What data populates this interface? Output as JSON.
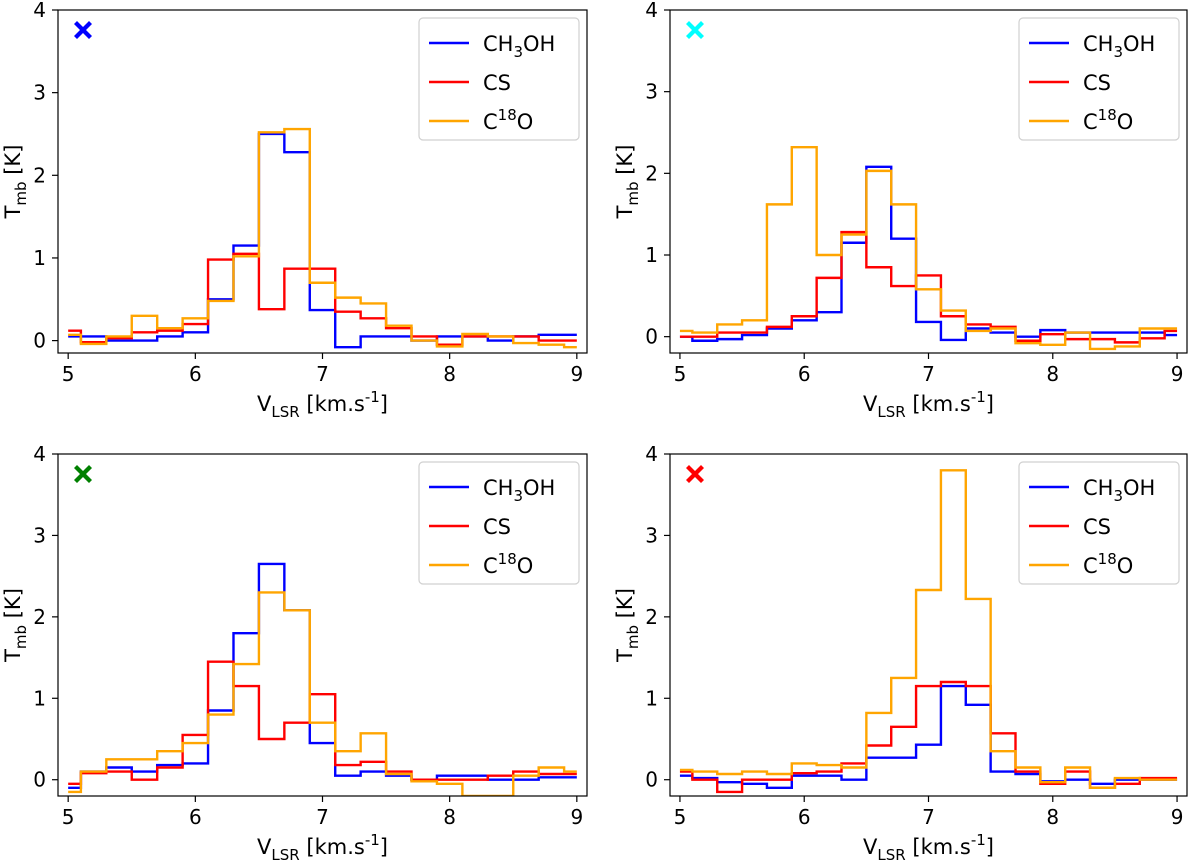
{
  "chart_data": [
    {
      "type": "line",
      "drawstyle": "steps-mid",
      "marker": {
        "symbol": "X",
        "color": "#0000ff"
      },
      "xlabel": "V_LSR [km.s^-1]",
      "ylabel": "T_mb [K]",
      "xlim": [
        4.92,
        9.08
      ],
      "ylim": [
        -0.15,
        4.0
      ],
      "xticks": [
        5,
        6,
        7,
        8,
        9
      ],
      "yticks": [
        0,
        1,
        2,
        3,
        4
      ],
      "legend": "top-right",
      "x": [
        5.0,
        5.2,
        5.4,
        5.6,
        5.8,
        6.0,
        6.2,
        6.4,
        6.6,
        6.8,
        7.0,
        7.2,
        7.4,
        7.6,
        7.8,
        8.0,
        8.2,
        8.4,
        8.6,
        8.8,
        9.0
      ],
      "series": [
        {
          "name": "CH3OH",
          "color": "#0000ff",
          "values": [
            0.05,
            0.05,
            0.0,
            0.0,
            0.05,
            0.1,
            0.5,
            1.15,
            2.5,
            2.28,
            0.37,
            -0.08,
            0.05,
            0.05,
            0.0,
            0.05,
            0.05,
            0.0,
            0.05,
            0.07,
            0.07
          ]
        },
        {
          "name": "CS",
          "color": "#ff0000",
          "values": [
            0.12,
            -0.02,
            0.03,
            0.1,
            0.12,
            0.2,
            0.98,
            1.05,
            0.38,
            0.87,
            0.87,
            0.35,
            0.27,
            0.15,
            0.05,
            -0.05,
            0.05,
            0.05,
            0.05,
            0.0,
            0.0
          ]
        },
        {
          "name": "C18O",
          "color": "#ffa500",
          "values": [
            0.07,
            -0.04,
            0.05,
            0.3,
            0.15,
            0.27,
            0.48,
            1.02,
            2.52,
            2.56,
            0.7,
            0.52,
            0.45,
            0.18,
            0.0,
            -0.07,
            0.08,
            0.05,
            -0.03,
            -0.05,
            -0.08
          ]
        }
      ]
    },
    {
      "type": "line",
      "drawstyle": "steps-mid",
      "marker": {
        "symbol": "X",
        "color": "#00ffff"
      },
      "xlabel": "V_LSR [km.s^-1]",
      "ylabel": "T_mb [K]",
      "xlim": [
        4.92,
        9.08
      ],
      "ylim": [
        -0.2,
        4.0
      ],
      "xticks": [
        5,
        6,
        7,
        8,
        9
      ],
      "yticks": [
        0,
        1,
        2,
        3,
        4
      ],
      "legend": "top-right",
      "x": [
        5.0,
        5.2,
        5.4,
        5.6,
        5.8,
        6.0,
        6.2,
        6.4,
        6.6,
        6.8,
        7.0,
        7.2,
        7.4,
        7.6,
        7.8,
        8.0,
        8.2,
        8.4,
        8.6,
        8.8,
        9.0
      ],
      "series": [
        {
          "name": "CH3OH",
          "color": "#0000ff",
          "values": [
            0.0,
            -0.05,
            -0.03,
            0.02,
            0.1,
            0.2,
            0.3,
            1.15,
            2.08,
            1.2,
            0.18,
            -0.04,
            0.1,
            0.05,
            0.0,
            0.08,
            0.05,
            0.05,
            0.05,
            0.05,
            0.02
          ]
        },
        {
          "name": "CS",
          "color": "#ff0000",
          "values": [
            0.0,
            0.0,
            0.05,
            0.05,
            0.12,
            0.25,
            0.72,
            1.28,
            0.85,
            0.62,
            0.75,
            0.25,
            0.15,
            0.12,
            -0.05,
            0.03,
            -0.03,
            -0.03,
            -0.07,
            -0.02,
            0.07
          ]
        },
        {
          "name": "C18O",
          "color": "#ffa500",
          "values": [
            0.07,
            0.05,
            0.15,
            0.2,
            1.62,
            2.32,
            1.0,
            1.25,
            2.03,
            1.62,
            0.58,
            0.32,
            0.07,
            0.1,
            -0.08,
            -0.1,
            0.05,
            -0.15,
            -0.12,
            0.1,
            0.1
          ]
        }
      ]
    },
    {
      "type": "line",
      "drawstyle": "steps-mid",
      "marker": {
        "symbol": "X",
        "color": "#008000"
      },
      "xlabel": "V_LSR [km.s^-1]",
      "ylabel": "T_mb [K]",
      "xlim": [
        4.92,
        9.08
      ],
      "ylim": [
        -0.2,
        4.0
      ],
      "xticks": [
        5,
        6,
        7,
        8,
        9
      ],
      "yticks": [
        0,
        1,
        2,
        3,
        4
      ],
      "legend": "top-right",
      "x": [
        5.0,
        5.2,
        5.4,
        5.6,
        5.8,
        6.0,
        6.2,
        6.4,
        6.6,
        6.8,
        7.0,
        7.2,
        7.4,
        7.6,
        7.8,
        8.0,
        8.2,
        8.4,
        8.6,
        8.8,
        9.0
      ],
      "series": [
        {
          "name": "CH3OH",
          "color": "#0000ff",
          "values": [
            -0.1,
            0.1,
            0.15,
            0.1,
            0.18,
            0.2,
            0.85,
            1.8,
            2.65,
            2.08,
            0.45,
            0.05,
            0.1,
            0.05,
            0.0,
            0.05,
            0.05,
            0.0,
            0.0,
            0.03,
            0.03
          ]
        },
        {
          "name": "CS",
          "color": "#ff0000",
          "values": [
            -0.05,
            0.08,
            0.1,
            0.0,
            0.15,
            0.55,
            1.45,
            1.15,
            0.5,
            0.7,
            1.05,
            0.18,
            0.22,
            0.1,
            0.0,
            0.0,
            0.0,
            0.05,
            0.1,
            0.07,
            0.07
          ]
        },
        {
          "name": "C18O",
          "color": "#ffa500",
          "values": [
            -0.15,
            0.1,
            0.25,
            0.25,
            0.35,
            0.45,
            0.8,
            1.42,
            2.3,
            2.08,
            0.7,
            0.35,
            0.57,
            0.07,
            -0.02,
            -0.05,
            -0.2,
            -0.2,
            0.05,
            0.15,
            0.1
          ]
        }
      ]
    },
    {
      "type": "line",
      "drawstyle": "steps-mid",
      "marker": {
        "symbol": "X",
        "color": "#ff0000"
      },
      "xlabel": "V_LSR [km.s^-1]",
      "ylabel": "T_mb [K]",
      "xlim": [
        4.92,
        9.08
      ],
      "ylim": [
        -0.2,
        4.0
      ],
      "xticks": [
        5,
        6,
        7,
        8,
        9
      ],
      "yticks": [
        0,
        1,
        2,
        3,
        4
      ],
      "legend": "top-right",
      "x": [
        5.0,
        5.2,
        5.4,
        5.6,
        5.8,
        6.0,
        6.2,
        6.4,
        6.6,
        6.8,
        7.0,
        7.2,
        7.4,
        7.6,
        7.8,
        8.0,
        8.2,
        8.4,
        8.6,
        8.8,
        9.0
      ],
      "series": [
        {
          "name": "CH3OH",
          "color": "#0000ff",
          "values": [
            0.05,
            0.02,
            -0.03,
            -0.05,
            -0.1,
            0.05,
            0.05,
            0.0,
            0.27,
            0.27,
            0.43,
            1.15,
            0.92,
            0.1,
            0.07,
            -0.02,
            0.0,
            -0.05,
            0.0,
            0.0,
            0.0
          ]
        },
        {
          "name": "CS",
          "color": "#ff0000",
          "values": [
            0.1,
            0.0,
            -0.15,
            0.0,
            0.0,
            0.08,
            0.1,
            0.2,
            0.42,
            0.65,
            1.15,
            1.2,
            1.15,
            0.57,
            0.1,
            -0.05,
            0.1,
            -0.1,
            -0.05,
            0.02,
            0.02
          ]
        },
        {
          "name": "C18O",
          "color": "#ffa500",
          "values": [
            0.12,
            0.1,
            0.07,
            0.1,
            0.07,
            0.2,
            0.18,
            0.15,
            0.82,
            1.25,
            2.33,
            3.8,
            2.22,
            0.35,
            0.15,
            -0.03,
            0.15,
            -0.1,
            0.02,
            0.0,
            0.0
          ]
        }
      ]
    }
  ]
}
